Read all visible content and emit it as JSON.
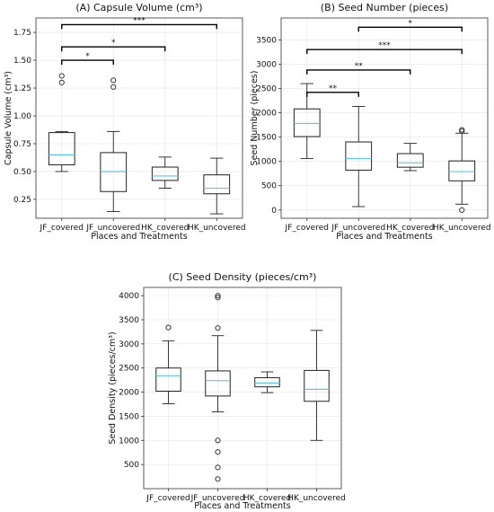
{
  "chart_data": [
    {
      "id": "A",
      "type": "box",
      "title": "(A) Capsule Volume (cm³)",
      "xlabel": "Places and Treatments",
      "ylabel": "Capsule Volume (cm³)",
      "ylim": [
        0.08,
        1.88
      ],
      "yticks": [
        "0.25",
        "0.50",
        "0.75",
        "1.00",
        "1.25",
        "1.50",
        "1.75"
      ],
      "ytick_values": [
        0.25,
        0.5,
        0.75,
        1.0,
        1.25,
        1.5,
        1.75
      ],
      "categories": [
        "JF_covered",
        "JF_uncovered",
        "HK_covered",
        "HK_uncovered"
      ],
      "boxes": [
        {
          "min": 0.5,
          "q1": 0.56,
          "median": 0.65,
          "q3": 0.85,
          "max": 0.86,
          "fliers": [
            1.3,
            1.36
          ]
        },
        {
          "min": 0.14,
          "q1": 0.32,
          "median": 0.5,
          "q3": 0.67,
          "max": 0.86,
          "fliers": [
            1.26,
            1.32
          ]
        },
        {
          "min": 0.35,
          "q1": 0.42,
          "median": 0.46,
          "q3": 0.54,
          "max": 0.63,
          "fliers": []
        },
        {
          "min": 0.12,
          "q1": 0.3,
          "median": 0.35,
          "q3": 0.47,
          "max": 0.62,
          "fliers": []
        }
      ],
      "significance": [
        {
          "from": 0,
          "to": 1,
          "y": 1.5,
          "label": "*"
        },
        {
          "from": 0,
          "to": 2,
          "y": 1.62,
          "label": "*"
        },
        {
          "from": 0,
          "to": 3,
          "y": 1.82,
          "label": "***"
        }
      ]
    },
    {
      "id": "B",
      "type": "box",
      "title": "(B) Seed Number (pieces)",
      "xlabel": "Places and Treatments",
      "ylabel": "Seed Number (pieces)",
      "ylim": [
        -170,
        3950
      ],
      "yticks": [
        "0",
        "500",
        "1000",
        "1500",
        "2000",
        "2500",
        "3000",
        "3500"
      ],
      "ytick_values": [
        0,
        500,
        1000,
        1500,
        2000,
        2500,
        3000,
        3500
      ],
      "categories": [
        "JF_covered",
        "JF_uncovered",
        "HK_covered",
        "HK_uncovered"
      ],
      "boxes": [
        {
          "min": 1060,
          "q1": 1510,
          "median": 1780,
          "q3": 2080,
          "max": 2600,
          "fliers": []
        },
        {
          "min": 70,
          "q1": 820,
          "median": 1060,
          "q3": 1400,
          "max": 2130,
          "fliers": []
        },
        {
          "min": 810,
          "q1": 880,
          "median": 970,
          "q3": 1160,
          "max": 1370,
          "fliers": []
        },
        {
          "min": 120,
          "q1": 600,
          "median": 790,
          "q3": 1010,
          "max": 1580,
          "fliers": [
            1620,
            1650,
            0
          ]
        }
      ],
      "significance": [
        {
          "from": 0,
          "to": 1,
          "y": 2420,
          "label": "**"
        },
        {
          "from": 0,
          "to": 2,
          "y": 2880,
          "label": "**"
        },
        {
          "from": 0,
          "to": 3,
          "y": 3300,
          "label": "***"
        },
        {
          "from": 1,
          "to": 3,
          "y": 3760,
          "label": "*"
        }
      ]
    },
    {
      "id": "C",
      "type": "box",
      "title": "(C) Seed Density (pieces/cm³)",
      "xlabel": "Places and Treatments",
      "ylabel": "Seed Density (pieces/cm³)",
      "ylim": [
        0,
        4170
      ],
      "yticks": [
        "500",
        "1000",
        "1500",
        "2000",
        "2500",
        "3000",
        "3500",
        "4000"
      ],
      "ytick_values": [
        500,
        1000,
        1500,
        2000,
        2500,
        3000,
        3500,
        4000
      ],
      "categories": [
        "JF_covered",
        "JF_uncovered",
        "HK_covered",
        "HK_uncovered"
      ],
      "boxes": [
        {
          "min": 1760,
          "q1": 2020,
          "median": 2340,
          "q3": 2500,
          "max": 3060,
          "fliers": [
            3340
          ]
        },
        {
          "min": 1590,
          "q1": 1920,
          "median": 2240,
          "q3": 2440,
          "max": 3170,
          "fliers": [
            3330,
            3960,
            4000,
            1000,
            760,
            440,
            200
          ]
        },
        {
          "min": 1990,
          "q1": 2110,
          "median": 2190,
          "q3": 2300,
          "max": 2420,
          "fliers": []
        },
        {
          "min": 1000,
          "q1": 1810,
          "median": 2060,
          "q3": 2450,
          "max": 3280,
          "fliers": []
        }
      ],
      "significance": []
    }
  ]
}
